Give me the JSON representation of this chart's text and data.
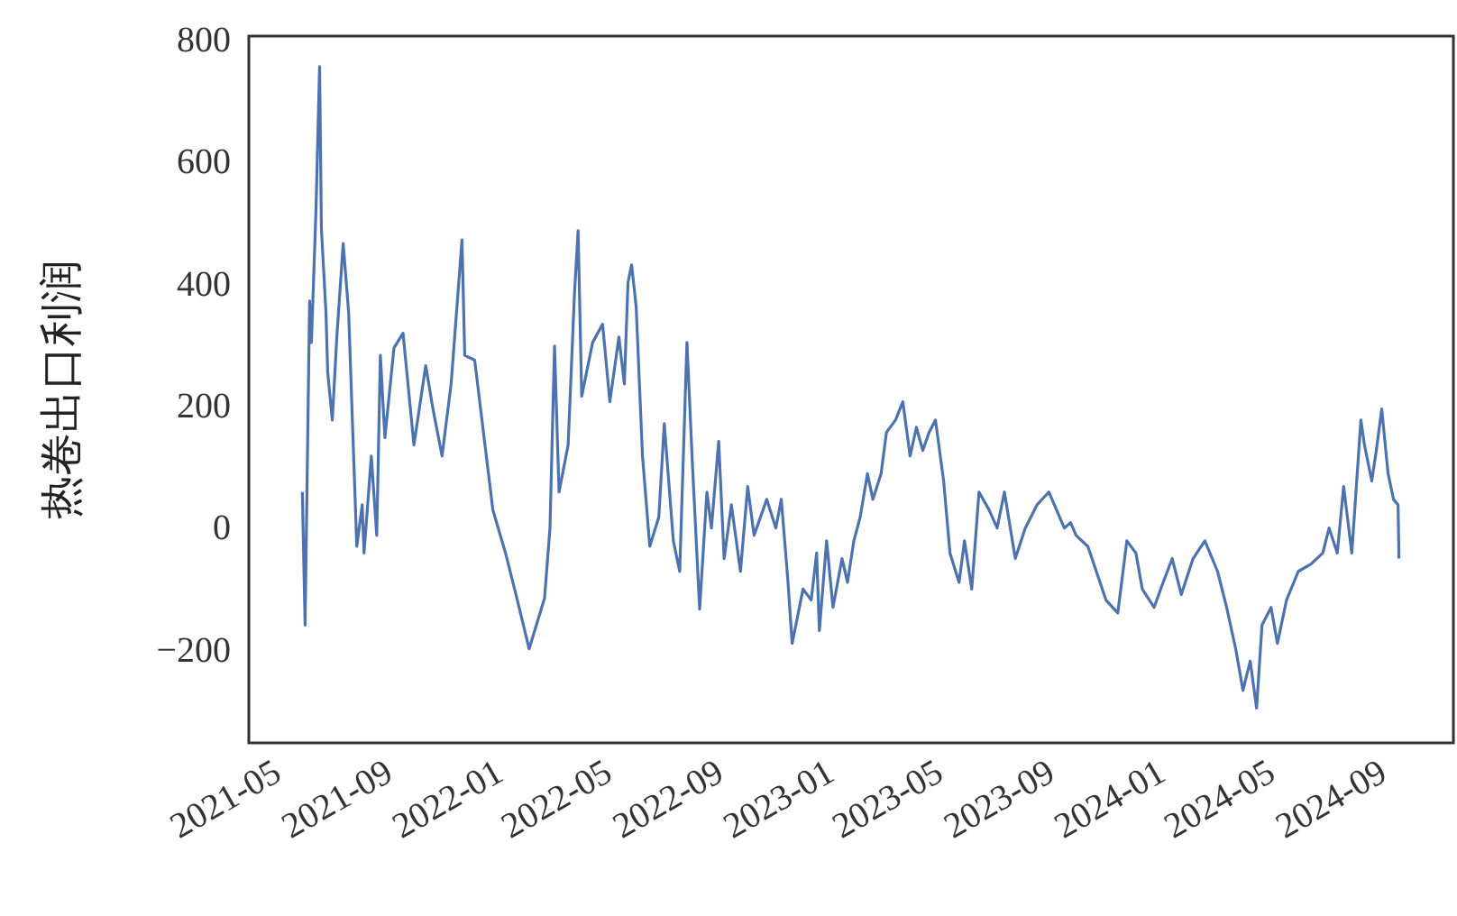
{
  "chart_data": {
    "type": "line",
    "ylabel": "热卷出口利润",
    "xlim": [
      "2021-03-24",
      "2024-11-11"
    ],
    "ylim": [
      -352,
      806
    ],
    "xticks": [
      "2021-05",
      "2021-09",
      "2022-01",
      "2022-05",
      "2022-09",
      "2023-01",
      "2023-05",
      "2023-09",
      "2024-01",
      "2024-05",
      "2024-09"
    ],
    "yticks": [
      -200,
      0,
      200,
      400,
      600,
      800
    ],
    "grid": false,
    "series": [
      {
        "color": "#4c72b0",
        "x": [
          "2021-05-22",
          "2021-05-25",
          "2021-05-30",
          "2021-06-01",
          "2021-06-06",
          "2021-06-10",
          "2021-06-12",
          "2021-06-17",
          "2021-06-19",
          "2021-06-24",
          "2021-06-29",
          "2021-07-06",
          "2021-07-12",
          "2021-07-21",
          "2021-07-27",
          "2021-07-29",
          "2021-08-06",
          "2021-08-12",
          "2021-08-16",
          "2021-08-21",
          "2021-08-31",
          "2021-09-10",
          "2021-09-22",
          "2021-10-05",
          "2021-10-13",
          "2021-10-23",
          "2021-11-02",
          "2021-11-14",
          "2021-11-17",
          "2021-11-28",
          "2021-12-06",
          "2021-12-18",
          "2022-01-01",
          "2022-01-14",
          "2022-01-27",
          "2022-02-13",
          "2022-02-19",
          "2022-02-24",
          "2022-03-01",
          "2022-03-11",
          "2022-03-18",
          "2022-03-22",
          "2022-03-26",
          "2022-04-07",
          "2022-04-18",
          "2022-04-26",
          "2022-05-06",
          "2022-05-12",
          "2022-05-16",
          "2022-05-20",
          "2022-05-25",
          "2022-06-01",
          "2022-06-09",
          "2022-06-19",
          "2022-06-25",
          "2022-07-05",
          "2022-07-12",
          "2022-07-20",
          "2022-07-26",
          "2022-08-03",
          "2022-08-11",
          "2022-08-16",
          "2022-08-24",
          "2022-08-30",
          "2022-09-07",
          "2022-09-17",
          "2022-09-25",
          "2022-10-02",
          "2022-10-16",
          "2022-10-26",
          "2022-11-01",
          "2022-11-08",
          "2022-11-13",
          "2022-11-25",
          "2022-12-04",
          "2022-12-10",
          "2022-12-13",
          "2022-12-21",
          "2022-12-28",
          "2023-01-07",
          "2023-01-13",
          "2023-01-20",
          "2023-01-27",
          "2023-02-04",
          "2023-02-10",
          "2023-02-19",
          "2023-02-25",
          "2023-03-07",
          "2023-03-15",
          "2023-03-23",
          "2023-03-30",
          "2023-04-06",
          "2023-04-13",
          "2023-04-20",
          "2023-04-29",
          "2023-05-06",
          "2023-05-16",
          "2023-05-22",
          "2023-05-30",
          "2023-06-07",
          "2023-06-18",
          "2023-06-27",
          "2023-07-05",
          "2023-07-17",
          "2023-07-28",
          "2023-08-10",
          "2023-08-23",
          "2023-09-09",
          "2023-09-16",
          "2023-09-22",
          "2023-10-05",
          "2023-10-25",
          "2023-11-07",
          "2023-11-17",
          "2023-11-27",
          "2023-12-04",
          "2023-12-17",
          "2023-12-27",
          "2024-01-06",
          "2024-01-16",
          "2024-01-29",
          "2024-02-11",
          "2024-02-25",
          "2024-03-06",
          "2024-03-16",
          "2024-03-24",
          "2024-04-01",
          "2024-04-08",
          "2024-04-14",
          "2024-04-24",
          "2024-05-01",
          "2024-05-11",
          "2024-05-24",
          "2024-06-07",
          "2024-06-20",
          "2024-06-27",
          "2024-07-06",
          "2024-07-13",
          "2024-07-22",
          "2024-08-01",
          "2024-08-05",
          "2024-08-13",
          "2024-08-18",
          "2024-08-24",
          "2024-08-31",
          "2024-09-06",
          "2024-09-11",
          "2024-09-12"
        ],
        "values": [
          59,
          -159,
          372,
          304,
          520,
          756,
          490,
          354,
          254,
          177,
          313,
          466,
          354,
          -30,
          38,
          -41,
          118,
          -12,
          283,
          148,
          295,
          319,
          136,
          266,
          195,
          118,
          236,
          472,
          283,
          275,
          177,
          30,
          -41,
          -118,
          -198,
          -115,
          0,
          298,
          59,
          136,
          384,
          487,
          216,
          304,
          334,
          207,
          313,
          236,
          402,
          431,
          363,
          118,
          -30,
          18,
          171,
          -21,
          -71,
          304,
          106,
          -133,
          59,
          0,
          142,
          -50,
          38,
          -71,
          68,
          -12,
          47,
          0,
          47,
          -80,
          -189,
          -100,
          -118,
          -41,
          -168,
          -21,
          -130,
          -50,
          -89,
          -21,
          18,
          89,
          47,
          89,
          157,
          177,
          207,
          118,
          165,
          127,
          157,
          177,
          77,
          -41,
          -89,
          -21,
          -100,
          59,
          30,
          0,
          59,
          -50,
          0,
          38,
          59,
          0,
          9,
          -12,
          -30,
          -118,
          -139,
          -21,
          -41,
          -100,
          -130,
          -89,
          -50,
          -109,
          -50,
          -21,
          -71,
          -130,
          -198,
          -266,
          -218,
          -295,
          -159,
          -130,
          -189,
          -118,
          -71,
          -59,
          -41,
          0,
          -41,
          68,
          -41,
          177,
          136,
          77,
          127,
          195,
          89,
          47,
          38,
          -50
        ]
      }
    ]
  }
}
